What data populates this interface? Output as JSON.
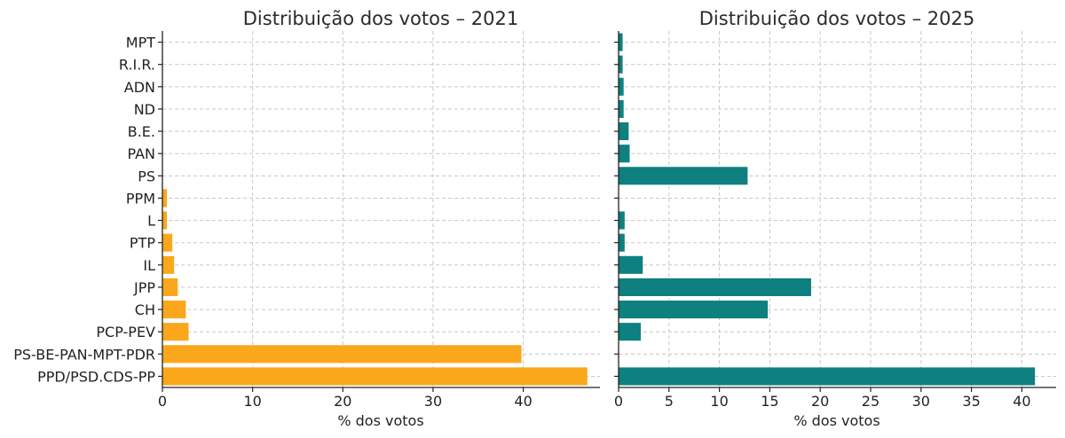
{
  "chart_data": [
    {
      "type": "bar",
      "orientation": "horizontal",
      "title": "Distribuição dos votos – 2021",
      "xlabel": "% dos votos",
      "ylabel": "",
      "xlim": [
        0,
        48.5
      ],
      "xticks": [
        0,
        10,
        20,
        30,
        40
      ],
      "grid": true,
      "color": "#FBA71B",
      "categories": [
        "MPT",
        "R.I.R.",
        "ADN",
        "ND",
        "B.E.",
        "PAN",
        "PS",
        "PPM",
        "L",
        "PTP",
        "IL",
        "JPP",
        "CH",
        "PCP-PEV",
        "PS-BE-PAN-MPT-PDR",
        "PPD/PSD.CDS-PP"
      ],
      "values": [
        0,
        0,
        0,
        0,
        0,
        0,
        0,
        0.5,
        0.5,
        1.1,
        1.3,
        1.7,
        2.6,
        2.9,
        39.8,
        47.1
      ]
    },
    {
      "type": "bar",
      "orientation": "horizontal",
      "title": "Distribuição dos votos – 2025",
      "xlabel": "% dos votos",
      "ylabel": "",
      "xlim": [
        0,
        43.4
      ],
      "xticks": [
        0,
        5,
        10,
        15,
        20,
        25,
        30,
        35,
        40
      ],
      "grid": true,
      "color": "#0E8080",
      "categories": [
        "MPT",
        "R.I.R.",
        "ADN",
        "ND",
        "B.E.",
        "PAN",
        "PS",
        "PPM",
        "L",
        "PTP",
        "IL",
        "JPP",
        "CH",
        "PCP-PEV",
        "PS-BE-PAN-MPT-PDR",
        "PPD/PSD.CDS-PP"
      ],
      "values": [
        0.4,
        0.4,
        0.5,
        0.5,
        1.0,
        1.1,
        12.8,
        0,
        0.6,
        0.6,
        2.4,
        19.1,
        14.8,
        2.2,
        0,
        41.3
      ]
    }
  ]
}
